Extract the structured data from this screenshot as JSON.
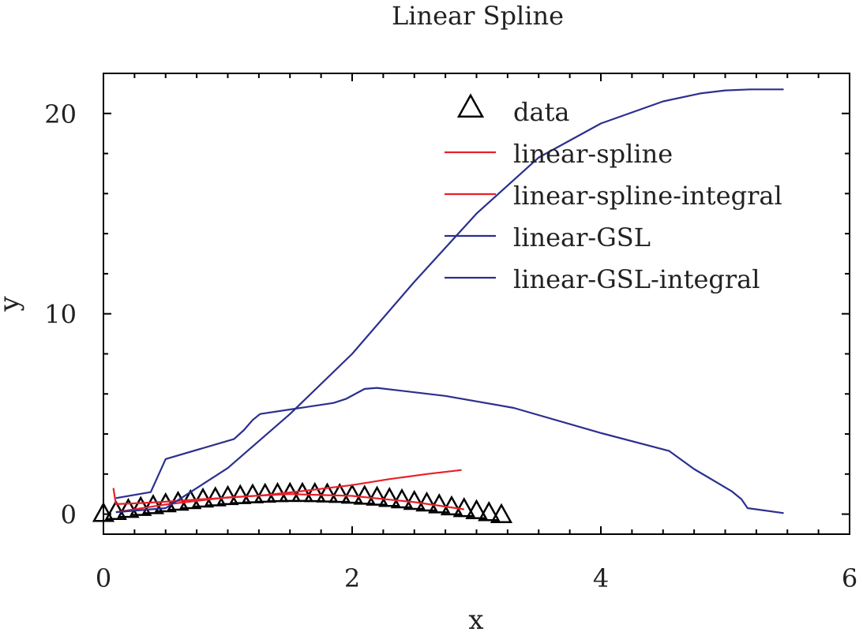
{
  "chart_data": {
    "type": "line",
    "title": "Linear Spline",
    "xlabel": "x",
    "ylabel": "y",
    "xlim": [
      0,
      6
    ],
    "ylim": [
      -1,
      22
    ],
    "xticks": [
      0,
      2,
      4,
      6
    ],
    "yticks": [
      0,
      10,
      20
    ],
    "grid": false,
    "legend_position": "top-right",
    "series": [
      {
        "name": "data",
        "kind": "markers",
        "marker": "triangle",
        "color": "#000000",
        "x": [
          0.0,
          0.1,
          0.2,
          0.3,
          0.4,
          0.5,
          0.6,
          0.7,
          0.8,
          0.9,
          1.0,
          1.1,
          1.2,
          1.3,
          1.4,
          1.5,
          1.6,
          1.7,
          1.8,
          1.9,
          2.0,
          2.1,
          2.2,
          2.3,
          2.4,
          2.5,
          2.6,
          2.7,
          2.8,
          2.9,
          3.0,
          3.1,
          3.2
        ],
        "y": [
          0.0,
          0.1,
          0.2,
          0.3,
          0.39,
          0.48,
          0.56,
          0.64,
          0.72,
          0.78,
          0.84,
          0.89,
          0.93,
          0.96,
          0.99,
          1.0,
          1.0,
          0.99,
          0.97,
          0.95,
          0.91,
          0.86,
          0.81,
          0.75,
          0.68,
          0.6,
          0.52,
          0.43,
          0.33,
          0.24,
          0.14,
          0.04,
          -0.06
        ]
      },
      {
        "name": "linear-spline",
        "color": "#e8202a",
        "x": [
          0.1,
          0.5,
          1.0,
          1.5,
          2.0,
          2.5,
          2.9
        ],
        "y": [
          0.1,
          0.48,
          0.84,
          1.0,
          0.91,
          0.6,
          0.24
        ]
      },
      {
        "name": "linear-spline-integral",
        "color": "#e8202a",
        "x": [
          0.08,
          0.1,
          0.3,
          0.5,
          0.8,
          1.0,
          1.3,
          1.6,
          2.0,
          2.3,
          2.6,
          2.88
        ],
        "y": [
          1.3,
          0.5,
          0.55,
          0.62,
          0.75,
          0.82,
          0.95,
          1.15,
          1.45,
          1.75,
          2.0,
          2.2
        ]
      },
      {
        "name": "linear-GSL",
        "color": "#2b2f8e",
        "x": [
          0.1,
          0.38,
          0.5,
          1.05,
          1.13,
          1.2,
          1.26,
          1.85,
          1.95,
          2.1,
          2.2,
          2.75,
          3.3,
          4.0,
          4.55,
          4.75,
          5.05,
          5.13,
          5.18,
          5.47
        ],
        "y": [
          0.8,
          1.1,
          2.75,
          3.75,
          4.2,
          4.7,
          5.0,
          5.55,
          5.75,
          6.25,
          6.3,
          5.9,
          5.3,
          4.05,
          3.15,
          2.25,
          1.15,
          0.75,
          0.3,
          0.05
        ]
      },
      {
        "name": "linear-GSL-integral",
        "color": "#2b2f8e",
        "x": [
          0.1,
          0.5,
          1.0,
          1.5,
          2.0,
          2.5,
          3.0,
          3.5,
          4.0,
          4.5,
          4.8,
          5.0,
          5.2,
          5.47
        ],
        "y": [
          0.1,
          0.3,
          2.3,
          5.0,
          8.0,
          11.6,
          15.0,
          17.8,
          19.5,
          20.6,
          21.0,
          21.15,
          21.2,
          21.2
        ]
      }
    ]
  }
}
